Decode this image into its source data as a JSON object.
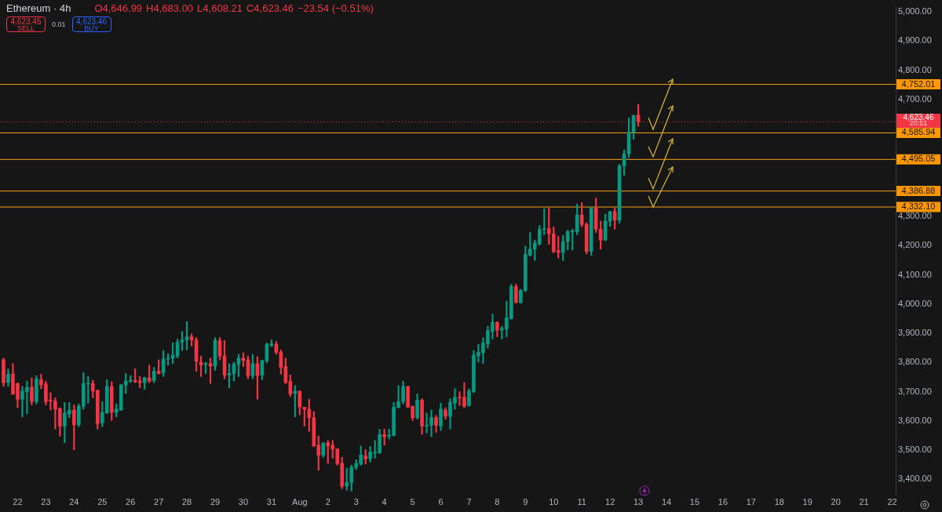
{
  "chart_data": {
    "type": "candlestick",
    "title": "Ethereum · 4h",
    "annotations": [
      "O4,646.99",
      "H4,683.00",
      "L4,608.21",
      "C4,623.46",
      "−23.54 (−0.51%)",
      "4,623.45",
      "SELL",
      "0.01",
      "4,623.46",
      "BUY",
      "20:51"
    ],
    "x": [
      "--07-21T12:00",
      "--07-21T16:00",
      "--07-21T20:00",
      "--07-22T00:00",
      "--07-22T04:00",
      "--07-22T08:00",
      "--07-22T12:00",
      "--07-22T16:00",
      "--07-22T20:00",
      "--07-23T00:00",
      "--07-23T04:00",
      "--07-23T08:00",
      "--07-23T12:00",
      "--07-23T16:00",
      "--07-23T20:00",
      "--07-24T00:00",
      "--07-24T04:00",
      "--07-24T08:00",
      "--07-24T12:00",
      "--07-24T16:00",
      "--07-24T20:00",
      "--07-25T00:00",
      "--07-25T04:00",
      "--07-25T08:00",
      "--07-25T12:00",
      "--07-25T16:00",
      "--07-25T20:00",
      "--07-26T00:00",
      "--07-26T04:00",
      "--07-26T08:00",
      "--07-26T12:00",
      "--07-26T16:00",
      "--07-26T20:00",
      "--07-27T00:00",
      "--07-27T04:00",
      "--07-27T08:00",
      "--07-27T12:00",
      "--07-27T16:00",
      "--07-27T20:00",
      "--07-28T00:00",
      "--07-28T04:00",
      "--07-28T08:00",
      "--07-28T12:00",
      "--07-28T16:00",
      "--07-28T20:00",
      "--07-29T00:00",
      "--07-29T04:00",
      "--07-29T08:00",
      "--07-29T12:00",
      "--07-29T16:00",
      "--07-29T20:00",
      "--07-30T00:00",
      "--07-30T04:00",
      "--07-30T08:00",
      "--07-30T12:00",
      "--07-30T16:00",
      "--07-30T20:00",
      "--07-31T00:00",
      "--07-31T04:00",
      "--07-31T08:00",
      "--07-31T12:00",
      "--07-31T16:00",
      "--07-31T20:00",
      "--08-01T00:00",
      "--08-01T04:00",
      "--08-01T08:00",
      "--08-01T12:00",
      "--08-01T16:00",
      "--08-01T20:00",
      "--08-02T00:00",
      "--08-02T04:00",
      "--08-02T08:00",
      "--08-02T12:00",
      "--08-02T16:00",
      "--08-02T20:00",
      "--08-03T00:00",
      "--08-03T04:00",
      "--08-03T08:00",
      "--08-03T12:00",
      "--08-03T16:00",
      "--08-03T20:00",
      "--08-04T00:00",
      "--08-04T04:00",
      "--08-04T08:00",
      "--08-04T12:00",
      "--08-04T16:00",
      "--08-04T20:00",
      "--08-05T00:00",
      "--08-05T04:00",
      "--08-05T08:00",
      "--08-05T12:00",
      "--08-05T16:00",
      "--08-05T20:00",
      "--08-06T00:00",
      "--08-06T04:00",
      "--08-06T08:00",
      "--08-06T12:00",
      "--08-06T16:00",
      "--08-06T20:00",
      "--08-07T00:00",
      "--08-07T04:00",
      "--08-07T08:00",
      "--08-07T12:00",
      "--08-07T16:00",
      "--08-07T20:00",
      "--08-08T00:00",
      "--08-08T04:00",
      "--08-08T08:00",
      "--08-08T12:00",
      "--08-08T16:00",
      "--08-08T20:00",
      "--08-09T00:00",
      "--08-09T04:00",
      "--08-09T08:00",
      "--08-09T12:00",
      "--08-09T16:00",
      "--08-09T20:00",
      "--08-10T00:00",
      "--08-10T04:00",
      "--08-10T08:00",
      "--08-10T12:00",
      "--08-10T16:00",
      "--08-10T20:00",
      "--08-11T00:00",
      "--08-11T04:00",
      "--08-11T08:00",
      "--08-11T12:00",
      "--08-11T16:00",
      "--08-11T20:00",
      "--08-12T00:00",
      "--08-12T04:00",
      "--08-12T08:00",
      "--08-12T12:00",
      "--08-12T16:00",
      "--08-12T20:00",
      "--08-13T00:00"
    ],
    "ohlc": [
      [
        3809,
        3815,
        3718,
        3731
      ],
      [
        3731,
        3778,
        3718,
        3760
      ],
      [
        3760,
        3796,
        3690,
        3692
      ],
      [
        3728,
        3730,
        3645,
        3674
      ],
      [
        3674,
        3718,
        3614,
        3702
      ],
      [
        3700,
        3736,
        3624,
        3715
      ],
      [
        3715,
        3747,
        3655,
        3666
      ],
      [
        3666,
        3755,
        3658,
        3744
      ],
      [
        3741,
        3760,
        3710,
        3723
      ],
      [
        3726,
        3736,
        3655,
        3666
      ],
      [
        3671,
        3697,
        3637,
        3668
      ],
      [
        3668,
        3679,
        3572,
        3640
      ],
      [
        3642,
        3645,
        3548,
        3582
      ],
      [
        3582,
        3663,
        3525,
        3627
      ],
      [
        3624,
        3663,
        3611,
        3637
      ],
      [
        3637,
        3655,
        3501,
        3587
      ],
      [
        3587,
        3658,
        3580,
        3650
      ],
      [
        3650,
        3765,
        3640,
        3728
      ],
      [
        3726,
        3752,
        3661,
        3728
      ],
      [
        3728,
        3739,
        3679,
        3702
      ],
      [
        3705,
        3705,
        3572,
        3590
      ],
      [
        3593,
        3666,
        3580,
        3629
      ],
      [
        3627,
        3741,
        3625,
        3718
      ],
      [
        3718,
        3734,
        3601,
        3629
      ],
      [
        3629,
        3658,
        3614,
        3640
      ],
      [
        3637,
        3725,
        3635,
        3723
      ],
      [
        3723,
        3762,
        3694,
        3736
      ],
      [
        3736,
        3755,
        3731,
        3739
      ],
      [
        3739,
        3778,
        3731,
        3734
      ],
      [
        3736,
        3752,
        3713,
        3731
      ],
      [
        3731,
        3750,
        3708,
        3747
      ],
      [
        3747,
        3791,
        3731,
        3736
      ],
      [
        3739,
        3783,
        3731,
        3770
      ],
      [
        3770,
        3809,
        3760,
        3762
      ],
      [
        3765,
        3841,
        3752,
        3812
      ],
      [
        3812,
        3830,
        3791,
        3815
      ],
      [
        3815,
        3867,
        3796,
        3825
      ],
      [
        3822,
        3880,
        3815,
        3869
      ],
      [
        3869,
        3906,
        3841,
        3877
      ],
      [
        3877,
        3940,
        3843,
        3888
      ],
      [
        3888,
        3898,
        3856,
        3877
      ],
      [
        3877,
        3885,
        3770,
        3804
      ],
      [
        3801,
        3822,
        3752,
        3791
      ],
      [
        3794,
        3801,
        3762,
        3796
      ],
      [
        3796,
        3815,
        3728,
        3788
      ],
      [
        3788,
        3885,
        3773,
        3875
      ],
      [
        3875,
        3885,
        3809,
        3822
      ],
      [
        3822,
        3875,
        3744,
        3757
      ],
      [
        3757,
        3796,
        3713,
        3762
      ],
      [
        3762,
        3801,
        3736,
        3794
      ],
      [
        3794,
        3828,
        3752,
        3815
      ],
      [
        3815,
        3833,
        3786,
        3807
      ],
      [
        3809,
        3822,
        3744,
        3755
      ],
      [
        3755,
        3828,
        3744,
        3796
      ],
      [
        3796,
        3820,
        3674,
        3755
      ],
      [
        3757,
        3807,
        3741,
        3807
      ],
      [
        3807,
        3867,
        3799,
        3862
      ],
      [
        3859,
        3877,
        3854,
        3864
      ],
      [
        3862,
        3872,
        3828,
        3835
      ],
      [
        3835,
        3843,
        3760,
        3783
      ],
      [
        3786,
        3815,
        3728,
        3731
      ],
      [
        3736,
        3757,
        3684,
        3692
      ],
      [
        3694,
        3721,
        3614,
        3702
      ],
      [
        3702,
        3702,
        3621,
        3647
      ],
      [
        3647,
        3647,
        3582,
        3640
      ],
      [
        3640,
        3674,
        3564,
        3611
      ],
      [
        3611,
        3632,
        3512,
        3514
      ],
      [
        3517,
        3548,
        3431,
        3483
      ],
      [
        3483,
        3525,
        3475,
        3525
      ],
      [
        3525,
        3533,
        3454,
        3514
      ],
      [
        3517,
        3533,
        3472,
        3504
      ],
      [
        3504,
        3504,
        3449,
        3454
      ],
      [
        3454,
        3475,
        3368,
        3376
      ],
      [
        3376,
        3439,
        3363,
        3389
      ],
      [
        3389,
        3449,
        3360,
        3441
      ],
      [
        3441,
        3467,
        3433,
        3454
      ],
      [
        3452,
        3514,
        3449,
        3483
      ],
      [
        3480,
        3501,
        3452,
        3470
      ],
      [
        3470,
        3512,
        3459,
        3493
      ],
      [
        3491,
        3533,
        3472,
        3493
      ],
      [
        3491,
        3572,
        3488,
        3553
      ],
      [
        3553,
        3572,
        3517,
        3545
      ],
      [
        3548,
        3572,
        3538,
        3551
      ],
      [
        3551,
        3663,
        3548,
        3647
      ],
      [
        3645,
        3721,
        3645,
        3666
      ],
      [
        3666,
        3736,
        3658,
        3718
      ],
      [
        3718,
        3718,
        3645,
        3647
      ],
      [
        3650,
        3650,
        3601,
        3611
      ],
      [
        3611,
        3692,
        3606,
        3671
      ],
      [
        3671,
        3676,
        3554,
        3582
      ],
      [
        3582,
        3627,
        3559,
        3585
      ],
      [
        3585,
        3637,
        3546,
        3611
      ],
      [
        3611,
        3619,
        3561,
        3585
      ],
      [
        3582,
        3661,
        3567,
        3640
      ],
      [
        3637,
        3645,
        3606,
        3616
      ],
      [
        3616,
        3676,
        3572,
        3663
      ],
      [
        3661,
        3710,
        3640,
        3681
      ],
      [
        3681,
        3700,
        3653,
        3679
      ],
      [
        3681,
        3731,
        3645,
        3650
      ],
      [
        3653,
        3710,
        3650,
        3702
      ],
      [
        3700,
        3841,
        3697,
        3825
      ],
      [
        3822,
        3862,
        3801,
        3835
      ],
      [
        3833,
        3885,
        3796,
        3867
      ],
      [
        3864,
        3924,
        3849,
        3909
      ],
      [
        3906,
        3966,
        3880,
        3937
      ],
      [
        3937,
        3940,
        3888,
        3911
      ],
      [
        3911,
        3924,
        3880,
        3916
      ],
      [
        3914,
        4010,
        3888,
        3953
      ],
      [
        3950,
        4068,
        3948,
        4060
      ],
      [
        4060,
        4068,
        4003,
        4005
      ],
      [
        4005,
        4050,
        4003,
        4047
      ],
      [
        4047,
        4198,
        4042,
        4170
      ],
      [
        4167,
        4245,
        4164,
        4188
      ],
      [
        4188,
        4219,
        4149,
        4209
      ],
      [
        4206,
        4269,
        4201,
        4256
      ],
      [
        4256,
        4326,
        4237,
        4258
      ],
      [
        4258,
        4329,
        4204,
        4240
      ],
      [
        4240,
        4264,
        4175,
        4180
      ],
      [
        4183,
        4232,
        4157,
        4177
      ],
      [
        4177,
        4235,
        4149,
        4214
      ],
      [
        4214,
        4253,
        4185,
        4248
      ],
      [
        4248,
        4256,
        4185,
        4250
      ],
      [
        4248,
        4342,
        4237,
        4305
      ],
      [
        4305,
        4347,
        4264,
        4272
      ],
      [
        4272,
        4279,
        4172,
        4180
      ],
      [
        4180,
        4331,
        4167,
        4329
      ],
      [
        4329,
        4363,
        4245,
        4256
      ],
      [
        4256,
        4284,
        4188,
        4219
      ],
      [
        4219,
        4308,
        4217,
        4284
      ],
      [
        4284,
        4318,
        4266,
        4316
      ],
      [
        4316,
        4329,
        4256,
        4287
      ],
      [
        4287,
        4478,
        4277,
        4473
      ],
      [
        4473,
        4527,
        4441,
        4514
      ],
      [
        4514,
        4637,
        4501,
        4588
      ],
      [
        4588,
        4647,
        4564,
        4645
      ],
      [
        4646.99,
        4683.0,
        4608.21,
        4623.46
      ]
    ],
    "colors": [
      "#f23645",
      "#089981",
      "#f23645",
      "#f23645",
      "#089981",
      "#089981",
      "#f23645",
      "#089981",
      "#f23645",
      "#f23645",
      "#f23645",
      "#f23645",
      "#f23645",
      "#089981",
      "#089981",
      "#f23645",
      "#089981",
      "#089981",
      "#089981",
      "#f23645",
      "#f23645",
      "#089981",
      "#089981",
      "#f23645",
      "#089981",
      "#089981",
      "#089981",
      "#089981",
      "#f23645",
      "#f23645",
      "#089981",
      "#f23645",
      "#089981",
      "#f23645",
      "#089981",
      "#089981",
      "#089981",
      "#089981",
      "#089981",
      "#089981",
      "#f23645",
      "#f23645",
      "#f23645",
      "#089981",
      "#f23645",
      "#089981",
      "#f23645",
      "#f23645",
      "#089981",
      "#089981",
      "#089981",
      "#f23645",
      "#f23645",
      "#089981",
      "#f23645",
      "#089981",
      "#089981",
      "#089981",
      "#f23645",
      "#f23645",
      "#f23645",
      "#f23645",
      "#089981",
      "#f23645",
      "#f23645",
      "#f23645",
      "#f23645",
      "#f23645",
      "#089981",
      "#f23645",
      "#f23645",
      "#f23645",
      "#f23645",
      "#089981",
      "#089981",
      "#089981",
      "#089981",
      "#f23645",
      "#089981",
      "#089981",
      "#089981",
      "#f23645",
      "#089981",
      "#089981",
      "#089981",
      "#089981",
      "#f23645",
      "#f23645",
      "#089981",
      "#f23645",
      "#089981",
      "#089981",
      "#f23645",
      "#089981",
      "#f23645",
      "#089981",
      "#089981",
      "#f23645",
      "#f23645",
      "#089981",
      "#089981",
      "#089981",
      "#089981",
      "#089981",
      "#089981",
      "#f23645",
      "#089981",
      "#089981",
      "#089981",
      "#f23645",
      "#089981",
      "#089981",
      "#089981",
      "#089981",
      "#089981",
      "#089981",
      "#f23645",
      "#f23645",
      "#f23645",
      "#089981",
      "#089981",
      "#089981",
      "#089981",
      "#f23645",
      "#f23645",
      "#089981",
      "#f23645",
      "#f23645",
      "#089981",
      "#089981",
      "#f23645",
      "#089981",
      "#089981",
      "#089981",
      "#089981",
      "#f23645"
    ],
    "xlim": [
      "--07-21T09:00",
      "--08-22T03:00"
    ],
    "xticks": [
      {
        "value": "--07-22",
        "label": "22"
      },
      {
        "value": "--07-23",
        "label": "23"
      },
      {
        "value": "--07-24",
        "label": "24"
      },
      {
        "value": "--07-25",
        "label": "25"
      },
      {
        "value": "--07-26",
        "label": "26"
      },
      {
        "value": "--07-27",
        "label": "27"
      },
      {
        "value": "--07-28",
        "label": "28"
      },
      {
        "value": "--07-29",
        "label": "29"
      },
      {
        "value": "--07-30",
        "label": "30"
      },
      {
        "value": "--07-31",
        "label": "31"
      },
      {
        "value": "--08-01",
        "label": "Aug"
      },
      {
        "value": "--08-02",
        "label": "2"
      },
      {
        "value": "--08-03",
        "label": "3"
      },
      {
        "value": "--08-04",
        "label": "4"
      },
      {
        "value": "--08-05",
        "label": "5"
      },
      {
        "value": "--08-06",
        "label": "6"
      },
      {
        "value": "--08-07",
        "label": "7"
      },
      {
        "value": "--08-08",
        "label": "8"
      },
      {
        "value": "--08-09",
        "label": "9"
      },
      {
        "value": "--08-10",
        "label": "10"
      },
      {
        "value": "--08-11",
        "label": "11"
      },
      {
        "value": "--08-12",
        "label": "12"
      },
      {
        "value": "--08-13",
        "label": "13"
      },
      {
        "value": "--08-14",
        "label": "14"
      },
      {
        "value": "--08-15",
        "label": "15"
      },
      {
        "value": "--08-16",
        "label": "16"
      },
      {
        "value": "--08-17",
        "label": "17"
      },
      {
        "value": "--08-18",
        "label": "18"
      },
      {
        "value": "--08-19",
        "label": "19"
      },
      {
        "value": "--08-20",
        "label": "20"
      },
      {
        "value": "--08-21",
        "label": "21"
      },
      {
        "value": "--08-22",
        "label": "22"
      }
    ],
    "ylim": [
      3345,
      5015
    ],
    "yticks": [
      {
        "value": 3400,
        "label": "3,400.00"
      },
      {
        "value": 3500,
        "label": "3,500.00"
      },
      {
        "value": 3600,
        "label": "3,600.00"
      },
      {
        "value": 3700,
        "label": "3,700.00"
      },
      {
        "value": 3800,
        "label": "3,800.00"
      },
      {
        "value": 3900,
        "label": "3,900.00"
      },
      {
        "value": 4000,
        "label": "4,000.00"
      },
      {
        "value": 4100,
        "label": "4,100.00"
      },
      {
        "value": 4200,
        "label": "4,200.00"
      },
      {
        "value": 4300,
        "label": "4,300.00"
      },
      {
        "value": 4700,
        "label": "4,700.00"
      },
      {
        "value": 4800,
        "label": "4,800.00"
      },
      {
        "value": 4900,
        "label": "4,900.00"
      },
      {
        "value": 5000,
        "label": "5,000.00"
      }
    ],
    "ref_lines": [
      {
        "axis": "y",
        "value": 4752.01,
        "label": "4,752.01",
        "color": "#f7a21b"
      },
      {
        "axis": "y",
        "value": 4585.94,
        "label": "4,585.94",
        "color": "#f7a21b"
      },
      {
        "axis": "y",
        "value": 4495.05,
        "label": "4,495.05",
        "color": "#f7a21b"
      },
      {
        "axis": "y",
        "value": 4386.88,
        "label": "4,386.88",
        "color": "#f7a21b"
      },
      {
        "axis": "y",
        "value": 4332.1,
        "label": "4,332.10",
        "color": "#f7a21b"
      },
      {
        "axis": "y",
        "value": 4623.46,
        "label": "4,623.46",
        "color": "#f23645",
        "line_style": "dotted"
      }
    ],
    "grid": false,
    "legend": false
  }
}
